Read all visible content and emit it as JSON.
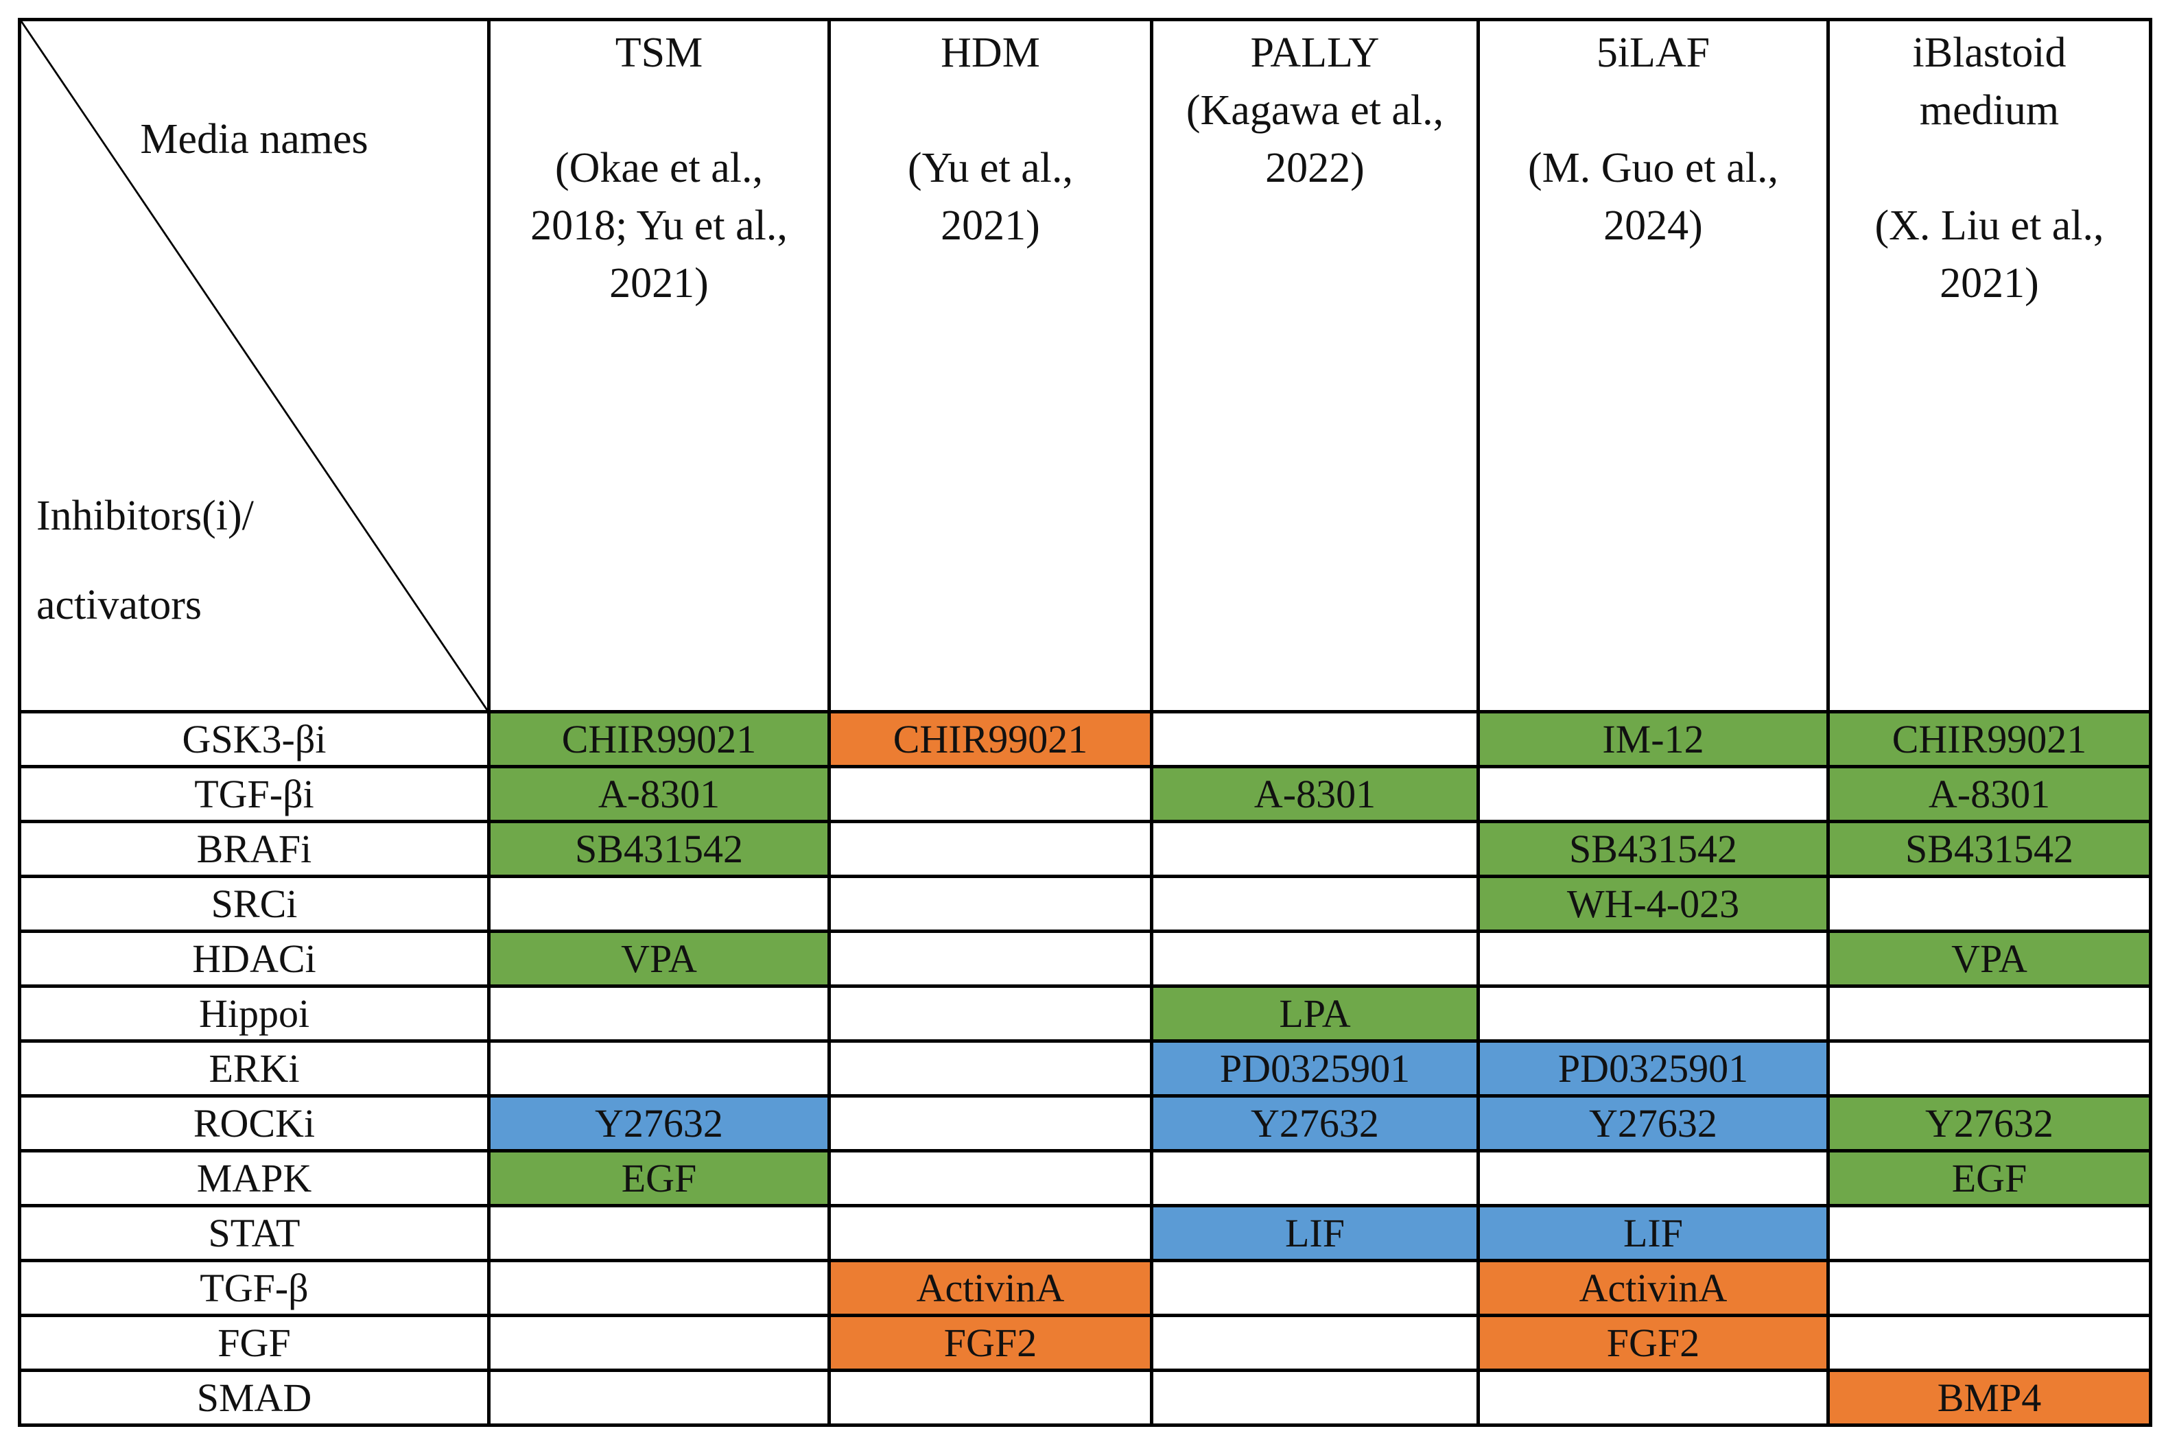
{
  "header": {
    "media_names": "Media names",
    "inhibitors_line1": "Inhibitors(i)/",
    "inhibitors_line2": "activators",
    "columns": [
      {
        "line1": "TSM",
        "line2": "",
        "line3": "(Okae et al.,",
        "line4": "2018; Yu et al.,",
        "line5": "2021)"
      },
      {
        "line1": "HDM",
        "line2": "",
        "line3": "(Yu et al.,",
        "line4": "2021)",
        "line5": ""
      },
      {
        "line1": "PALLY",
        "line2": "(Kagawa et al.,",
        "line3": "2022)",
        "line4": "",
        "line5": ""
      },
      {
        "line1": "5iLAF",
        "line2": "",
        "line3": "(M. Guo et al.,",
        "line4": "2024)",
        "line5": ""
      },
      {
        "line1": "iBlastoid",
        "line2": "medium",
        "line3": "",
        "line4": "(X. Liu et al.,",
        "line5": "2021)"
      }
    ]
  },
  "colors": {
    "green": "#6fa84a",
    "orange": "#ec7d32",
    "blue": "#5b9bd5"
  },
  "rows": [
    {
      "label": "GSK3-βi",
      "cells": [
        {
          "text": "CHIR99021",
          "color": "green"
        },
        {
          "text": "CHIR99021",
          "color": "orange"
        },
        {
          "text": "",
          "color": ""
        },
        {
          "text": "IM-12",
          "color": "green"
        },
        {
          "text": "CHIR99021",
          "color": "green"
        }
      ]
    },
    {
      "label": "TGF-βi",
      "cells": [
        {
          "text": "A-8301",
          "color": "green"
        },
        {
          "text": "",
          "color": ""
        },
        {
          "text": "A-8301",
          "color": "green"
        },
        {
          "text": "",
          "color": ""
        },
        {
          "text": "A-8301",
          "color": "green"
        }
      ]
    },
    {
      "label": "BRAFi",
      "cells": [
        {
          "text": "SB431542",
          "color": "green"
        },
        {
          "text": "",
          "color": ""
        },
        {
          "text": "",
          "color": ""
        },
        {
          "text": "SB431542",
          "color": "green"
        },
        {
          "text": "SB431542",
          "color": "green"
        }
      ]
    },
    {
      "label": "SRCi",
      "cells": [
        {
          "text": "",
          "color": ""
        },
        {
          "text": "",
          "color": ""
        },
        {
          "text": "",
          "color": ""
        },
        {
          "text": "WH-4-023",
          "color": "green"
        },
        {
          "text": "",
          "color": ""
        }
      ]
    },
    {
      "label": "HDACi",
      "cells": [
        {
          "text": "VPA",
          "color": "green"
        },
        {
          "text": "",
          "color": ""
        },
        {
          "text": "",
          "color": ""
        },
        {
          "text": "",
          "color": ""
        },
        {
          "text": "VPA",
          "color": "green"
        }
      ]
    },
    {
      "label": "Hippoi",
      "cells": [
        {
          "text": "",
          "color": ""
        },
        {
          "text": "",
          "color": ""
        },
        {
          "text": "LPA",
          "color": "green"
        },
        {
          "text": "",
          "color": ""
        },
        {
          "text": "",
          "color": ""
        }
      ]
    },
    {
      "label": "ERKi",
      "cells": [
        {
          "text": "",
          "color": ""
        },
        {
          "text": "",
          "color": ""
        },
        {
          "text": "PD0325901",
          "color": "blue"
        },
        {
          "text": "PD0325901",
          "color": "blue"
        },
        {
          "text": "",
          "color": ""
        }
      ]
    },
    {
      "label": "ROCKi",
      "cells": [
        {
          "text": "Y27632",
          "color": "blue"
        },
        {
          "text": "",
          "color": ""
        },
        {
          "text": "Y27632",
          "color": "blue"
        },
        {
          "text": "Y27632",
          "color": "blue"
        },
        {
          "text": "Y27632",
          "color": "green"
        }
      ]
    },
    {
      "label": "MAPK",
      "cells": [
        {
          "text": "EGF",
          "color": "green"
        },
        {
          "text": "",
          "color": ""
        },
        {
          "text": "",
          "color": ""
        },
        {
          "text": "",
          "color": ""
        },
        {
          "text": "EGF",
          "color": "green"
        }
      ]
    },
    {
      "label": "STAT",
      "cells": [
        {
          "text": "",
          "color": ""
        },
        {
          "text": "",
          "color": ""
        },
        {
          "text": "LIF",
          "color": "blue"
        },
        {
          "text": "LIF",
          "color": "blue"
        },
        {
          "text": "",
          "color": ""
        }
      ]
    },
    {
      "label": "TGF-β",
      "cells": [
        {
          "text": "",
          "color": ""
        },
        {
          "text": "ActivinA",
          "color": "orange"
        },
        {
          "text": "",
          "color": ""
        },
        {
          "text": "ActivinA",
          "color": "orange"
        },
        {
          "text": "",
          "color": ""
        }
      ]
    },
    {
      "label": "FGF",
      "cells": [
        {
          "text": "",
          "color": ""
        },
        {
          "text": "FGF2",
          "color": "orange"
        },
        {
          "text": "",
          "color": ""
        },
        {
          "text": "FGF2",
          "color": "orange"
        },
        {
          "text": "",
          "color": ""
        }
      ]
    },
    {
      "label": "SMAD",
      "cells": [
        {
          "text": "",
          "color": ""
        },
        {
          "text": "",
          "color": ""
        },
        {
          "text": "",
          "color": ""
        },
        {
          "text": "",
          "color": ""
        },
        {
          "text": "BMP4",
          "color": "orange"
        }
      ]
    }
  ]
}
